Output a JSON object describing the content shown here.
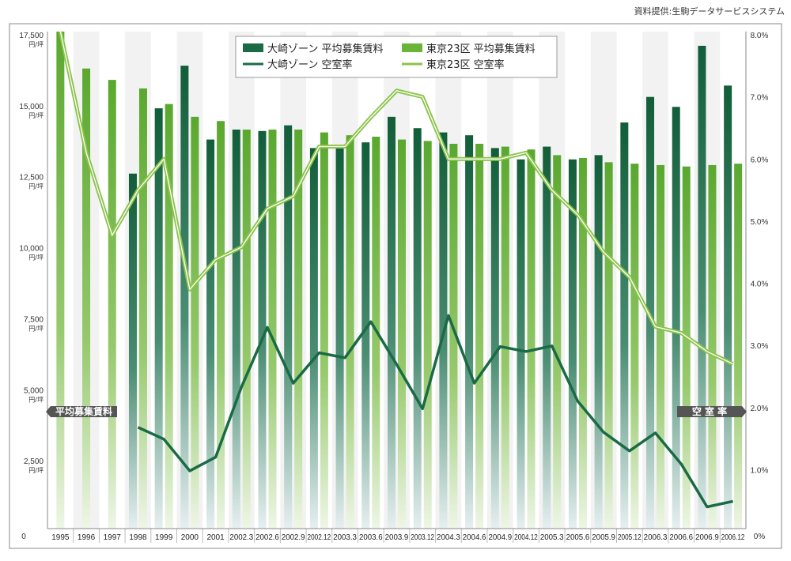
{
  "source_credit": "資料提供:生駒データサービスシステム",
  "badges": {
    "left": "平均募集賃料",
    "right": "空 室 率"
  },
  "colors": {
    "dark": "#1a6b45",
    "light": "#6bb43a",
    "frame": "#666666"
  },
  "chart_data": {
    "type": "bar+line",
    "categories": [
      "1995",
      "1996",
      "1997",
      "1998",
      "1999",
      "2000",
      "2001",
      "2002.3",
      "2002.6",
      "2002.9",
      "2002.12",
      "2003.3",
      "2003.6",
      "2003.9",
      "2003.12",
      "2004.3",
      "2004.6",
      "2004.9",
      "2004.12",
      "2005.3",
      "2005.6",
      "2005.9",
      "2005.12",
      "2006.3",
      "2006.6",
      "2006.9",
      "2006.12"
    ],
    "y_left": {
      "min": 0,
      "max": 17500,
      "ticks": [
        0,
        2500,
        5000,
        7500,
        10000,
        12500,
        15000,
        17500
      ],
      "tick_labels": [
        "0",
        "2,500",
        "5,000",
        "7,500",
        "10,000",
        "12,500",
        "15,000",
        "17,500"
      ],
      "unit": "円/坪"
    },
    "y_right": {
      "min": 0,
      "max": 8,
      "ticks": [
        0,
        1,
        2,
        3,
        4,
        5,
        6,
        7,
        8
      ],
      "tick_labels": [
        "0%",
        "1.0%",
        "2.0%",
        "3.0%",
        "4.0%",
        "5.0%",
        "6.0%",
        "7.0%",
        "8.0%"
      ]
    },
    "series": [
      {
        "name": "大崎ゾーン 平均募集賃料",
        "type": "bar",
        "axis": "left",
        "color": "dark",
        "values": [
          null,
          null,
          null,
          12500,
          14800,
          16300,
          13700,
          14050,
          14000,
          14200,
          13400,
          13400,
          13600,
          14500,
          14100,
          13950,
          13850,
          13400,
          13000,
          13450,
          13000,
          13150,
          14300,
          15200,
          14850,
          17000,
          15600
        ]
      },
      {
        "name": "東京23区 平均募集賃料",
        "type": "bar",
        "axis": "left",
        "color": "light",
        "values": [
          17500,
          16200,
          15800,
          15500,
          14950,
          14500,
          14350,
          14050,
          14050,
          14050,
          13950,
          13850,
          13800,
          13700,
          13650,
          13550,
          13550,
          13450,
          13350,
          13150,
          13050,
          12900,
          12850,
          12800,
          12750,
          12800,
          12850
        ]
      },
      {
        "name": "大崎ゾーン 空室率",
        "type": "line",
        "axis": "right",
        "color": "dark",
        "values": [
          null,
          null,
          null,
          1.63,
          1.44,
          0.93,
          1.15,
          2.28,
          3.24,
          2.34,
          2.83,
          2.75,
          3.33,
          2.64,
          1.93,
          3.43,
          2.34,
          2.93,
          2.85,
          2.94,
          2.05,
          1.55,
          1.25,
          1.54,
          1.04,
          0.35,
          0.44
        ]
      },
      {
        "name": "東京23区 空室率",
        "type": "line",
        "axis": "right",
        "color": "light",
        "values": [
          8.0,
          6.05,
          4.72,
          5.45,
          5.95,
          3.85,
          4.33,
          4.53,
          5.15,
          5.35,
          6.15,
          6.15,
          6.62,
          7.05,
          6.95,
          5.95,
          5.95,
          5.95,
          6.05,
          5.45,
          5.05,
          4.45,
          4.05,
          3.25,
          3.15,
          2.85,
          2.65
        ]
      }
    ]
  }
}
